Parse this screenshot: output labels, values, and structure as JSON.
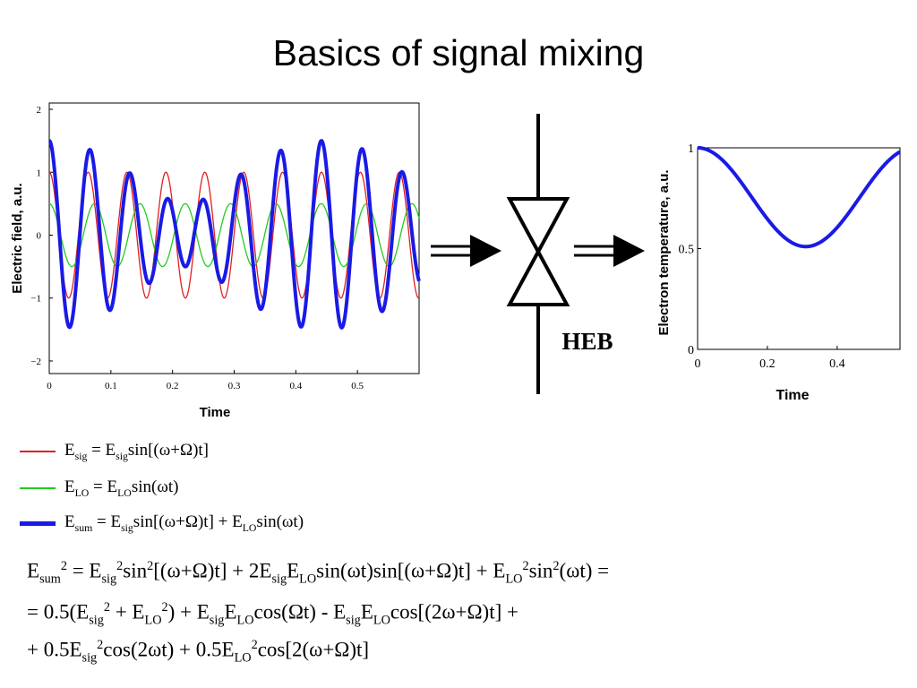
{
  "slide": {
    "title": "Basics of signal mixing",
    "device_label": "HEB"
  },
  "chart_data": [
    {
      "type": "line",
      "xlabel": "Time",
      "ylabel": "Electric field, a.u.",
      "xlim": [
        0,
        0.6
      ],
      "ylim": [
        -2.2,
        2.1
      ],
      "x_ticks": [
        "0",
        "0.1",
        "0.2",
        "0.3",
        "0.4",
        "0.5"
      ],
      "y_ticks": [
        "2",
        "1",
        "0",
        "−1",
        "−2"
      ],
      "series": [
        {
          "key": "E_sig",
          "color": "#e02020",
          "amplitude": 1.0,
          "model": "E_sig sin[(ω+Ω)t]"
        },
        {
          "key": "E_LO",
          "color": "#22cc22",
          "amplitude": 0.5,
          "model": "E_LO sin(ωt)"
        },
        {
          "key": "E_sum",
          "color": "#1a1ae6",
          "model": "E_sig sin[(ω+Ω)t] + E_LO sin(ωt)"
        }
      ]
    },
    {
      "type": "line",
      "xlabel": "Time",
      "ylabel": "Electron temperature, a.u.",
      "xlim": [
        0,
        0.58
      ],
      "ylim": [
        0,
        1
      ],
      "x_ticks": [
        "0",
        "0.2",
        "0.4"
      ],
      "y_ticks": [
        "1",
        "0.5",
        "0"
      ],
      "series": [
        {
          "key": "T_e",
          "color": "#1a1ae6",
          "max": 1.0,
          "min": 0.51,
          "min_at": 0.31
        }
      ]
    }
  ],
  "legend": [
    {
      "color": "#e02020",
      "name": "E_sig"
    },
    {
      "color": "#22cc22",
      "name": "E_LO"
    },
    {
      "color": "#1a1ae6",
      "name": "E_sum"
    }
  ],
  "colors": {
    "sig": "#e02020",
    "lo": "#22cc22",
    "sum": "#1a1ae6",
    "arrow": "#000000"
  },
  "icons": [
    "double-line-arrow-icon",
    "heb-mixer-symbol-icon"
  ]
}
